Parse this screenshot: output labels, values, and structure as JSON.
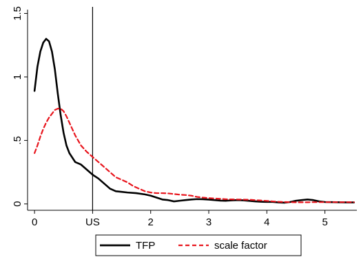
{
  "chart_data": {
    "type": "line",
    "title": "",
    "xlabel": "",
    "ylabel": "",
    "xlim": [
      -0.12,
      5.55
    ],
    "ylim": [
      -0.05,
      1.53
    ],
    "x_ticks": [
      {
        "value": 0,
        "label": "0"
      },
      {
        "value": 1,
        "label": "US"
      },
      {
        "value": 2,
        "label": "2"
      },
      {
        "value": 3,
        "label": "3"
      },
      {
        "value": 4,
        "label": "4"
      },
      {
        "value": 5,
        "label": "5"
      }
    ],
    "y_ticks": [
      {
        "value": 0,
        "label": "0"
      },
      {
        "value": 0.5,
        "label": ".5"
      },
      {
        "value": 1,
        "label": "1"
      },
      {
        "value": 1.5,
        "label": "1.5"
      }
    ],
    "reference_line": {
      "axis": "x",
      "value": 1
    },
    "grid": false,
    "legend_position": "bottom",
    "series": [
      {
        "name": "TFP",
        "color": "#000000",
        "style": "solid",
        "points": [
          [
            0.0,
            0.89
          ],
          [
            0.05,
            1.08
          ],
          [
            0.1,
            1.2
          ],
          [
            0.15,
            1.27
          ],
          [
            0.2,
            1.3
          ],
          [
            0.25,
            1.28
          ],
          [
            0.3,
            1.2
          ],
          [
            0.35,
            1.06
          ],
          [
            0.4,
            0.87
          ],
          [
            0.45,
            0.7
          ],
          [
            0.5,
            0.56
          ],
          [
            0.55,
            0.46
          ],
          [
            0.6,
            0.4
          ],
          [
            0.7,
            0.33
          ],
          [
            0.8,
            0.31
          ],
          [
            0.9,
            0.27
          ],
          [
            1.0,
            0.23
          ],
          [
            1.1,
            0.2
          ],
          [
            1.2,
            0.16
          ],
          [
            1.3,
            0.12
          ],
          [
            1.4,
            0.1
          ],
          [
            1.5,
            0.095
          ],
          [
            1.6,
            0.09
          ],
          [
            1.75,
            0.085
          ],
          [
            1.9,
            0.075
          ],
          [
            2.0,
            0.065
          ],
          [
            2.1,
            0.05
          ],
          [
            2.2,
            0.035
          ],
          [
            2.3,
            0.03
          ],
          [
            2.4,
            0.02
          ],
          [
            2.5,
            0.025
          ],
          [
            2.6,
            0.03
          ],
          [
            2.7,
            0.035
          ],
          [
            2.8,
            0.038
          ],
          [
            2.9,
            0.037
          ],
          [
            3.0,
            0.034
          ],
          [
            3.1,
            0.03
          ],
          [
            3.2,
            0.026
          ],
          [
            3.3,
            0.025
          ],
          [
            3.4,
            0.028
          ],
          [
            3.5,
            0.03
          ],
          [
            3.6,
            0.028
          ],
          [
            3.7,
            0.024
          ],
          [
            3.8,
            0.02
          ],
          [
            3.9,
            0.017
          ],
          [
            4.0,
            0.016
          ],
          [
            4.1,
            0.016
          ],
          [
            4.2,
            0.012
          ],
          [
            4.3,
            0.01
          ],
          [
            4.4,
            0.015
          ],
          [
            4.5,
            0.025
          ],
          [
            4.6,
            0.03
          ],
          [
            4.7,
            0.035
          ],
          [
            4.8,
            0.03
          ],
          [
            4.9,
            0.02
          ],
          [
            5.0,
            0.015
          ],
          [
            5.2,
            0.013
          ],
          [
            5.4,
            0.012
          ],
          [
            5.5,
            0.012
          ]
        ]
      },
      {
        "name": "scale factor",
        "color": "#e8141c",
        "style": "dashed",
        "points": [
          [
            0.0,
            0.4
          ],
          [
            0.05,
            0.46
          ],
          [
            0.1,
            0.53
          ],
          [
            0.15,
            0.59
          ],
          [
            0.2,
            0.64
          ],
          [
            0.25,
            0.68
          ],
          [
            0.3,
            0.71
          ],
          [
            0.35,
            0.74
          ],
          [
            0.4,
            0.75
          ],
          [
            0.45,
            0.75
          ],
          [
            0.5,
            0.73
          ],
          [
            0.55,
            0.69
          ],
          [
            0.6,
            0.64
          ],
          [
            0.7,
            0.54
          ],
          [
            0.8,
            0.46
          ],
          [
            0.9,
            0.41
          ],
          [
            1.0,
            0.37
          ],
          [
            1.1,
            0.33
          ],
          [
            1.2,
            0.29
          ],
          [
            1.3,
            0.25
          ],
          [
            1.4,
            0.21
          ],
          [
            1.5,
            0.19
          ],
          [
            1.6,
            0.17
          ],
          [
            1.7,
            0.14
          ],
          [
            1.8,
            0.12
          ],
          [
            1.9,
            0.1
          ],
          [
            2.0,
            0.09
          ],
          [
            2.1,
            0.085
          ],
          [
            2.2,
            0.085
          ],
          [
            2.3,
            0.083
          ],
          [
            2.4,
            0.078
          ],
          [
            2.5,
            0.073
          ],
          [
            2.6,
            0.07
          ],
          [
            2.7,
            0.065
          ],
          [
            2.8,
            0.055
          ],
          [
            2.9,
            0.05
          ],
          [
            3.0,
            0.046
          ],
          [
            3.1,
            0.043
          ],
          [
            3.2,
            0.04
          ],
          [
            3.3,
            0.037
          ],
          [
            3.4,
            0.036
          ],
          [
            3.5,
            0.035
          ],
          [
            3.6,
            0.034
          ],
          [
            3.7,
            0.033
          ],
          [
            3.8,
            0.03
          ],
          [
            3.9,
            0.027
          ],
          [
            4.0,
            0.024
          ],
          [
            4.1,
            0.02
          ],
          [
            4.2,
            0.017
          ],
          [
            4.3,
            0.015
          ],
          [
            4.4,
            0.014
          ],
          [
            4.5,
            0.013
          ],
          [
            4.6,
            0.013
          ],
          [
            4.7,
            0.013
          ],
          [
            4.8,
            0.014
          ],
          [
            4.9,
            0.014
          ],
          [
            5.0,
            0.014
          ],
          [
            5.2,
            0.014
          ],
          [
            5.4,
            0.014
          ],
          [
            5.5,
            0.014
          ]
        ]
      }
    ]
  }
}
